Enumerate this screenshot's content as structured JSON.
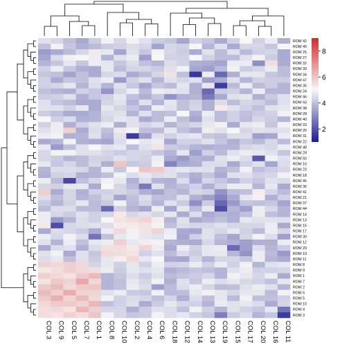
{
  "chart_data": {
    "type": "heatmap",
    "title": "",
    "columns": [
      "COL 3",
      "COL 9",
      "COL 5",
      "COL 7",
      "COL 1",
      "COL 8",
      "COL 10",
      "COL 2",
      "COL 4",
      "COL 6",
      "COL 18",
      "COL 12",
      "COL 14",
      "COL 13",
      "COL 19",
      "COL 15",
      "COL 17",
      "COL 20",
      "COL 16",
      "COL 11"
    ],
    "rows": [
      "ROW 42",
      "ROW 40",
      "ROW 25",
      "ROW 27",
      "ROW 32",
      "ROW 39",
      "ROW 34",
      "ROW 47",
      "ROW 35",
      "ROW 24",
      "ROW 46",
      "ROW 43",
      "ROW 38",
      "ROW 28",
      "ROW 40",
      "ROW 33",
      "ROW 26",
      "ROW 31",
      "ROW 22",
      "ROW 48",
      "ROW 29",
      "ROW 50",
      "ROW 16",
      "ROW 23",
      "ROW 18",
      "ROW 45",
      "ROW 36",
      "ROW 41",
      "ROW 21",
      "ROW 37",
      "ROW 44",
      "ROW 14",
      "ROW 13",
      "ROW 15",
      "ROW 17",
      "ROW 30",
      "ROW 12",
      "ROW 20",
      "ROW 19",
      "ROW 11",
      "ROW 8",
      "ROW 9",
      "ROW 1",
      "ROW 7",
      "ROW 2",
      "ROW 6",
      "ROW 5",
      "ROW 10",
      "ROW 4",
      "ROW 3"
    ],
    "values": [
      [
        4.6,
        4.4,
        4.0,
        3.6,
        4.2,
        4.9,
        4.4,
        4.9,
        4.6,
        4.2,
        4.1,
        3.5,
        4.3,
        4.1,
        3.6,
        4.3,
        5.0,
        4.3,
        4.8,
        3.7
      ],
      [
        4.0,
        4.9,
        4.1,
        3.7,
        3.9,
        4.2,
        4.3,
        4.5,
        4.4,
        3.5,
        4.4,
        4.3,
        5.0,
        3.8,
        4.6,
        3.6,
        4.4,
        4.4,
        4.1,
        5.0
      ],
      [
        3.3,
        3.6,
        3.9,
        4.4,
        5.3,
        4.7,
        3.5,
        4.6,
        4.1,
        4.9,
        4.4,
        4.2,
        3.6,
        4.6,
        3.9,
        4.6,
        3.9,
        4.3,
        4.4,
        3.6
      ],
      [
        3.5,
        4.5,
        4.9,
        5.0,
        4.8,
        3.8,
        4.6,
        4.8,
        3.4,
        5.0,
        4.3,
        4.3,
        5.0,
        4.3,
        3.9,
        3.9,
        4.6,
        4.9,
        4.2,
        3.6
      ],
      [
        3.8,
        4.1,
        4.7,
        4.1,
        4.8,
        4.7,
        4.1,
        4.5,
        4.0,
        3.8,
        4.5,
        4.3,
        3.7,
        3.6,
        3.5,
        4.8,
        4.8,
        3.1,
        5.5,
        3.6
      ],
      [
        4.3,
        4.8,
        4.1,
        3.7,
        3.6,
        4.7,
        3.9,
        4.4,
        4.4,
        4.2,
        4.6,
        4.9,
        3.5,
        3.4,
        3.9,
        4.9,
        4.2,
        4.4,
        4.8,
        3.9
      ],
      [
        4.1,
        4.0,
        3.5,
        4.0,
        3.6,
        4.4,
        4.5,
        3.6,
        3.9,
        4.4,
        5.4,
        4.0,
        1.5,
        4.8,
        2.4,
        3.7,
        4.7,
        4.7,
        4.1,
        3.9
      ],
      [
        4.3,
        3.6,
        4.1,
        4.0,
        4.6,
        4.8,
        3.3,
        4.3,
        4.6,
        3.8,
        4.6,
        4.4,
        4.6,
        3.4,
        3.6,
        4.6,
        3.8,
        4.3,
        4.2,
        4.2
      ],
      [
        4.3,
        4.4,
        4.7,
        3.8,
        4.5,
        3.8,
        4.6,
        4.1,
        3.5,
        4.1,
        3.9,
        4.7,
        3.7,
        4.7,
        1.6,
        3.9,
        4.8,
        3.9,
        4.2,
        3.8
      ],
      [
        4.0,
        3.8,
        3.7,
        4.3,
        4.1,
        3.2,
        4.4,
        4.8,
        3.9,
        4.8,
        4.7,
        4.6,
        3.7,
        2.4,
        4.2,
        4.3,
        3.8,
        4.8,
        3.8,
        3.8
      ],
      [
        4.2,
        4.3,
        4.6,
        3.7,
        4.1,
        4.3,
        4.7,
        4.0,
        3.7,
        4.1,
        3.2,
        3.7,
        3.8,
        2.7,
        3.6,
        4.6,
        4.7,
        3.7,
        4.2,
        4.6
      ],
      [
        4.6,
        4.1,
        3.9,
        3.6,
        3.6,
        4.4,
        4.6,
        3.8,
        4.6,
        3.8,
        4.7,
        4.0,
        4.3,
        3.7,
        4.5,
        3.9,
        4.4,
        4.3,
        3.9,
        4.6
      ],
      [
        4.6,
        4.6,
        4.3,
        4.7,
        3.6,
        4.7,
        4.4,
        4.1,
        3.7,
        4.8,
        4.6,
        4.0,
        4.4,
        3.7,
        5.3,
        4.6,
        4.3,
        4.0,
        4.6,
        4.7
      ],
      [
        4.2,
        4.0,
        3.6,
        3.6,
        3.8,
        4.5,
        4.6,
        3.8,
        4.6,
        3.9,
        4.0,
        5.0,
        3.7,
        4.8,
        3.9,
        4.3,
        4.0,
        4.2,
        4.3,
        4.9
      ],
      [
        5.0,
        4.3,
        4.5,
        3.7,
        3.8,
        4.4,
        4.7,
        4.6,
        3.6,
        3.9,
        4.8,
        4.0,
        3.5,
        4.6,
        3.9,
        4.3,
        3.9,
        4.4,
        4.2,
        3.8
      ],
      [
        4.3,
        4.8,
        3.7,
        4.3,
        4.6,
        4.8,
        3.7,
        4.6,
        4.4,
        4.6,
        3.8,
        4.2,
        4.4,
        4.7,
        4.9,
        3.6,
        4.7,
        4.8,
        4.1,
        4.9
      ],
      [
        4.6,
        4.8,
        5.8,
        3.6,
        4.5,
        4.0,
        5.3,
        4.9,
        4.0,
        3.9,
        4.7,
        4.0,
        3.7,
        5.2,
        4.6,
        5.0,
        4.4,
        4.6,
        4.5,
        4.6
      ],
      [
        4.8,
        4.9,
        3.7,
        3.8,
        4.6,
        3.8,
        4.6,
        1.6,
        3.4,
        4.6,
        4.3,
        4.6,
        4.7,
        4.1,
        4.0,
        4.5,
        4.5,
        3.4,
        3.5,
        4.8
      ],
      [
        3.6,
        3.8,
        4.9,
        3.7,
        3.6,
        3.5,
        4.5,
        5.0,
        4.7,
        4.8,
        3.5,
        4.3,
        4.3,
        4.6,
        4.1,
        3.7,
        4.1,
        3.9,
        4.4,
        3.9
      ],
      [
        4.7,
        3.3,
        4.0,
        4.6,
        5.0,
        4.6,
        4.7,
        3.9,
        4.6,
        5.4,
        4.2,
        4.1,
        3.8,
        3.7,
        3.8,
        3.8,
        4.4,
        4.5,
        4.4,
        4.8
      ],
      [
        4.4,
        4.9,
        4.9,
        4.6,
        4.6,
        4.4,
        4.2,
        4.4,
        4.4,
        4.1,
        3.8,
        4.7,
        3.4,
        4.3,
        3.9,
        4.6,
        4.8,
        4.7,
        4.6,
        4.1
      ],
      [
        4.4,
        4.2,
        3.8,
        3.9,
        4.3,
        4.3,
        4.6,
        4.4,
        4.3,
        4.8,
        3.6,
        3.3,
        3.8,
        3.7,
        4.6,
        4.8,
        4.5,
        2.1,
        4.9,
        4.6
      ],
      [
        4.7,
        4.1,
        4.4,
        3.9,
        4.4,
        3.7,
        6.0,
        4.1,
        4.2,
        4.9,
        2.9,
        3.6,
        3.7,
        4.5,
        4.5,
        3.6,
        4.3,
        4.6,
        3.5,
        4.5
      ],
      [
        3.8,
        4.5,
        4.5,
        4.4,
        3.8,
        4.8,
        4.1,
        5.0,
        6.0,
        5.9,
        4.6,
        4.7,
        4.6,
        4.6,
        3.8,
        4.0,
        4.9,
        4.0,
        4.2,
        4.4
      ],
      [
        3.7,
        4.3,
        4.4,
        3.7,
        3.8,
        4.0,
        4.9,
        4.5,
        4.7,
        4.5,
        4.6,
        4.1,
        3.7,
        4.1,
        3.6,
        4.6,
        4.6,
        4.3,
        4.4,
        4.9
      ],
      [
        4.8,
        3.9,
        1.8,
        4.0,
        4.4,
        4.9,
        4.7,
        3.7,
        4.5,
        3.8,
        3.7,
        4.5,
        3.6,
        4.4,
        4.1,
        3.8,
        4.3,
        4.1,
        4.6,
        4.5
      ],
      [
        4.4,
        4.3,
        4.7,
        4.7,
        3.6,
        5.0,
        4.4,
        3.9,
        2.7,
        4.6,
        3.8,
        4.0,
        4.3,
        3.7,
        4.3,
        4.8,
        4.8,
        3.8,
        4.7,
        3.6
      ],
      [
        5.8,
        3.6,
        4.4,
        3.7,
        4.3,
        4.3,
        4.4,
        4.2,
        3.7,
        3.5,
        4.0,
        3.8,
        4.4,
        4.3,
        3.2,
        3.9,
        4.0,
        5.2,
        4.4,
        3.9
      ],
      [
        4.5,
        4.0,
        4.4,
        3.8,
        4.0,
        4.4,
        3.5,
        4.0,
        4.5,
        4.0,
        4.0,
        4.6,
        3.7,
        3.4,
        2.9,
        3.6,
        4.7,
        4.9,
        3.7,
        4.3
      ],
      [
        4.2,
        3.8,
        4.3,
        4.7,
        3.9,
        4.2,
        4.9,
        3.9,
        4.4,
        3.8,
        4.6,
        4.2,
        3.1,
        4.2,
        2.4,
        3.3,
        4.1,
        4.0,
        4.1,
        3.5
      ],
      [
        3.9,
        4.5,
        4.5,
        3.9,
        3.9,
        2.4,
        4.3,
        3.8,
        3.5,
        4.8,
        3.5,
        4.7,
        3.9,
        4.7,
        1.9,
        3.8,
        3.4,
        4.8,
        4.4,
        3.8
      ],
      [
        4.8,
        4.4,
        4.2,
        4.6,
        4.3,
        4.4,
        5.3,
        4.4,
        4.6,
        4.4,
        4.7,
        3.6,
        4.5,
        3.6,
        3.8,
        3.7,
        4.0,
        4.8,
        4.0,
        3.8
      ],
      [
        4.8,
        3.3,
        3.8,
        4.5,
        4.3,
        5.0,
        5.4,
        5.5,
        5.7,
        5.2,
        3.8,
        4.6,
        3.6,
        3.8,
        4.0,
        3.7,
        4.7,
        4.6,
        4.6,
        4.6
      ],
      [
        5.3,
        1.9,
        4.4,
        4.5,
        4.6,
        4.5,
        5.2,
        5.3,
        5.4,
        4.9,
        4.0,
        4.5,
        4.4,
        4.4,
        4.6,
        4.4,
        4.4,
        4.4,
        4.8,
        3.6
      ],
      [
        3.6,
        4.5,
        4.4,
        4.2,
        3.6,
        4.8,
        5.6,
        4.9,
        5.4,
        5.7,
        4.8,
        3.6,
        3.5,
        4.6,
        4.4,
        4.7,
        4.3,
        3.9,
        4.8,
        4.4
      ],
      [
        4.8,
        4.4,
        4.9,
        4.5,
        2.6,
        4.0,
        4.7,
        4.9,
        4.7,
        4.6,
        4.9,
        3.5,
        4.3,
        4.6,
        4.0,
        3.5,
        4.4,
        4.9,
        4.5,
        3.4
      ],
      [
        4.6,
        3.8,
        4.8,
        4.0,
        4.7,
        4.8,
        5.8,
        4.7,
        5.2,
        4.9,
        3.8,
        3.7,
        3.6,
        4.4,
        3.8,
        3.7,
        3.4,
        3.7,
        3.7,
        4.8
      ],
      [
        3.6,
        4.5,
        4.6,
        3.7,
        4.5,
        5.5,
        5.5,
        5.3,
        5.7,
        4.8,
        3.6,
        4.8,
        4.3,
        4.7,
        4.8,
        2.4,
        3.4,
        4.5,
        3.8,
        4.2
      ],
      [
        4.6,
        4.9,
        3.6,
        4.6,
        4.1,
        5.6,
        5.5,
        5.4,
        4.3,
        4.6,
        3.9,
        4.5,
        4.2,
        4.7,
        4.7,
        3.8,
        3.2,
        4.8,
        3.9,
        3.3
      ],
      [
        4.5,
        4.7,
        4.0,
        4.6,
        4.2,
        4.7,
        5.2,
        5.6,
        4.7,
        5.0,
        3.6,
        3.5,
        4.4,
        3.8,
        4.4,
        4.4,
        4.1,
        4.8,
        3.8,
        3.6
      ],
      [
        5.7,
        5.6,
        5.8,
        5.6,
        4.4,
        4.7,
        4.3,
        4.7,
        4.3,
        4.8,
        4.3,
        4.4,
        4.8,
        4.3,
        4.8,
        4.3,
        4.9,
        3.8,
        4.6,
        4.7
      ],
      [
        5.3,
        5.5,
        5.8,
        5.6,
        5.5,
        4.8,
        4.2,
        4.7,
        4.6,
        4.7,
        3.7,
        3.9,
        4.1,
        4.0,
        3.8,
        4.6,
        4.8,
        4.3,
        4.3,
        4.4
      ],
      [
        5.8,
        5.6,
        5.4,
        5.9,
        6.2,
        3.8,
        4.1,
        4.5,
        4.2,
        4.6,
        3.9,
        4.1,
        4.2,
        4.4,
        3.8,
        4.9,
        4.7,
        4.4,
        4.8,
        3.6
      ],
      [
        5.4,
        5.9,
        5.7,
        6.6,
        5.6,
        3.8,
        4.0,
        4.7,
        4.4,
        4.9,
        3.7,
        4.6,
        4.1,
        4.8,
        4.5,
        4.7,
        4.4,
        4.3,
        4.0,
        4.7
      ],
      [
        5.9,
        6.2,
        5.6,
        5.9,
        6.0,
        3.8,
        4.0,
        4.8,
        4.5,
        3.4,
        3.9,
        4.5,
        4.8,
        4.4,
        3.9,
        4.0,
        4.6,
        4.8,
        4.6,
        3.8
      ],
      [
        6.2,
        5.8,
        6.5,
        5.7,
        5.7,
        4.6,
        4.8,
        4.2,
        4.1,
        4.9,
        3.9,
        4.0,
        4.7,
        4.9,
        4.7,
        4.4,
        4.7,
        4.7,
        3.9,
        4.9
      ],
      [
        5.9,
        6.4,
        5.7,
        6.2,
        5.6,
        4.9,
        4.3,
        4.5,
        4.4,
        4.0,
        4.4,
        3.7,
        4.5,
        4.0,
        4.7,
        3.9,
        4.9,
        4.0,
        4.0,
        4.3
      ],
      [
        5.6,
        5.9,
        5.9,
        5.7,
        6.3,
        4.0,
        4.3,
        4.6,
        3.6,
        4.2,
        4.7,
        4.4,
        4.3,
        3.8,
        4.8,
        4.6,
        4.7,
        4.5,
        3.6,
        4.4
      ],
      [
        5.5,
        5.6,
        5.4,
        6.3,
        5.8,
        4.4,
        4.4,
        3.7,
        4.2,
        4.6,
        4.5,
        4.0,
        4.9,
        4.3,
        3.8,
        4.6,
        4.3,
        4.1,
        4.7,
        2.6
      ],
      [
        5.5,
        5.4,
        5.7,
        5.5,
        6.0,
        4.9,
        4.4,
        4.1,
        4.2,
        4.9,
        4.5,
        4.7,
        4.3,
        4.1,
        2.8,
        4.2,
        4.5,
        3.8,
        4.1,
        1.6
      ]
    ],
    "color_scale": {
      "low": "#1c1c8f",
      "mid": "#f7f7f7",
      "high": "#cf2e2e",
      "range": [
        1,
        9
      ]
    },
    "legend": {
      "ticks": [
        2,
        4,
        6,
        8
      ],
      "placement": "top-right"
    },
    "column_dendrogram": true,
    "row_dendrogram": true
  }
}
